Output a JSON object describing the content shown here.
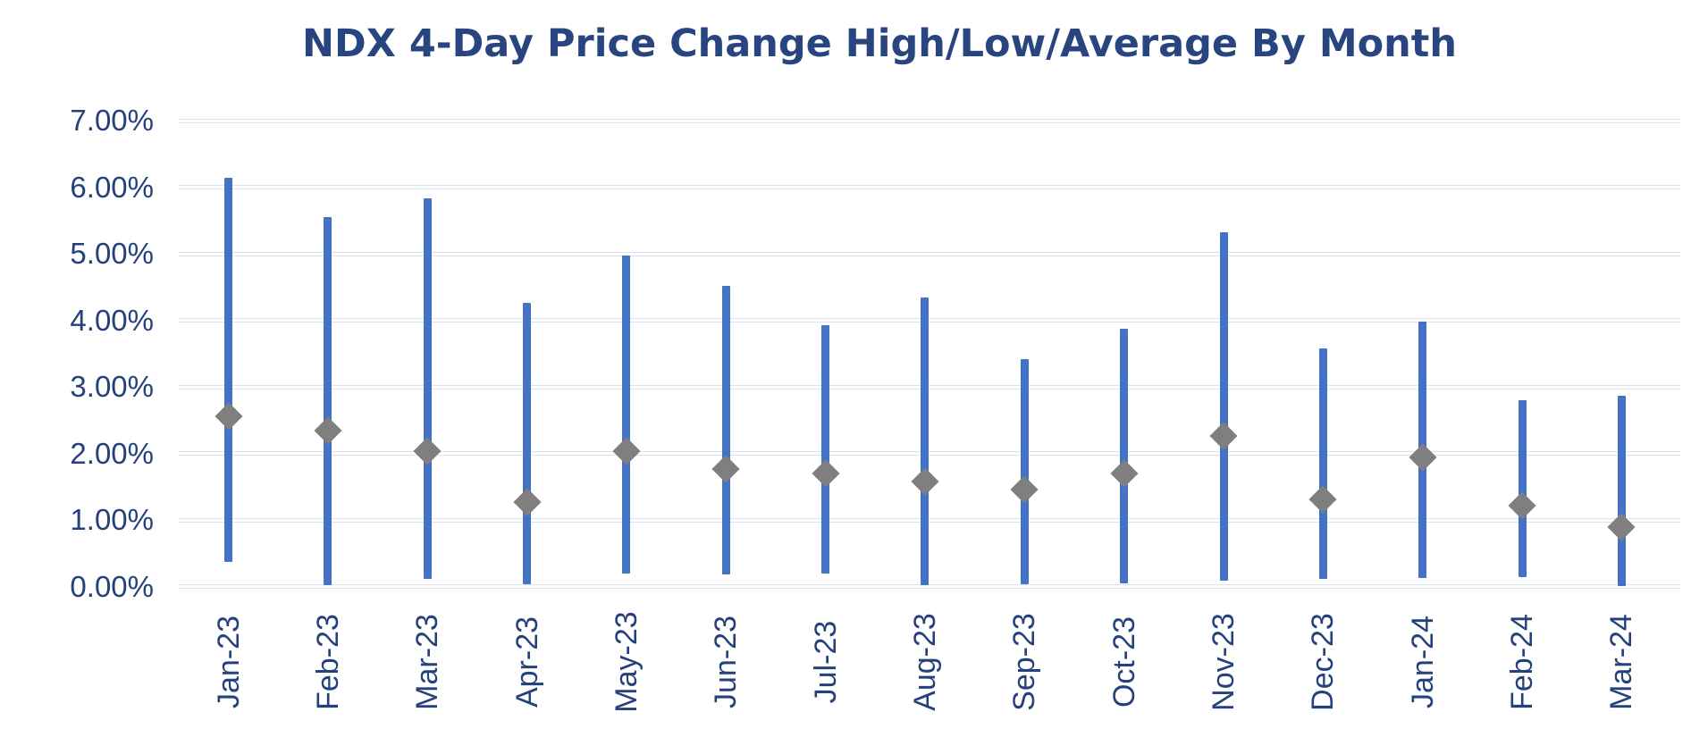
{
  "title": "NDX 4-Day Price Change High/Low/Average By Month",
  "chart_data": {
    "type": "bar",
    "subtype": "high-low-range-with-average-marker",
    "title": "NDX 4-Day Price Change High/Low/Average By Month",
    "categories": [
      "Jan-23",
      "Feb-23",
      "Mar-23",
      "Apr-23",
      "May-23",
      "Jun-23",
      "Jul-23",
      "Aug-23",
      "Sep-23",
      "Oct-23",
      "Nov-23",
      "Dec-23",
      "Jan-24",
      "Feb-24",
      "Mar-24"
    ],
    "series": [
      {
        "name": "High",
        "marker": "range-bar-top",
        "values": [
          6.14,
          5.55,
          5.83,
          4.26,
          4.97,
          4.52,
          3.93,
          4.34,
          3.42,
          3.87,
          5.32,
          3.58,
          3.98,
          2.8,
          2.87
        ]
      },
      {
        "name": "Low",
        "marker": "range-bar-bottom",
        "values": [
          0.37,
          0.02,
          0.11,
          0.03,
          0.19,
          0.18,
          0.19,
          0.02,
          0.03,
          0.05,
          0.09,
          0.11,
          0.13,
          0.14,
          0.01
        ]
      },
      {
        "name": "Average",
        "marker": "diamond",
        "values": [
          2.56,
          2.34,
          2.03,
          1.27,
          2.03,
          1.76,
          1.7,
          1.58,
          1.46,
          1.7,
          2.26,
          1.31,
          1.94,
          1.22,
          0.89
        ]
      }
    ],
    "unit": "percent",
    "xlabel": "",
    "ylabel": "",
    "y_axis": {
      "min": 0,
      "max": 7,
      "tick_values": [
        0,
        1,
        2,
        3,
        4,
        5,
        6,
        7
      ],
      "tick_labels": [
        "0.00%",
        "1.00%",
        "2.00%",
        "3.00%",
        "4.00%",
        "5.00%",
        "6.00%",
        "7.00%"
      ]
    },
    "grid": "horizontal",
    "legend": "none",
    "x_labels_rotation_degrees": 90,
    "colors": {
      "range_bar": "#4472C4",
      "average_marker": "#7F7F7F",
      "title": "#29457F",
      "axis_labels": "#25417B",
      "gridline": "#D9E4F3",
      "background": "#FFFFFF"
    }
  }
}
